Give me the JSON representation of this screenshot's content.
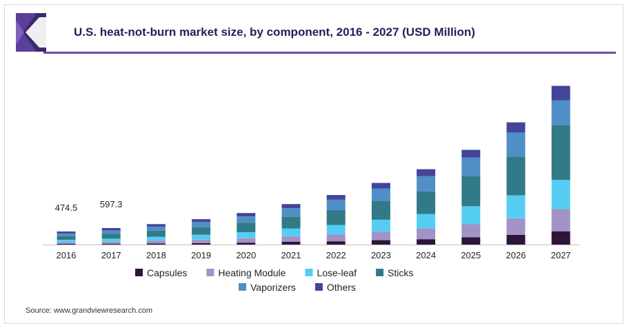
{
  "title": "U.S. heat-not-burn market size, by component, 2016 - 2027 (USD Million)",
  "source": "Source: www.grandviewresearch.com",
  "colors": {
    "Capsules": "#2e1538",
    "Heating Module": "#a193c6",
    "Lose-leaf": "#55cdf2",
    "Sticks": "#317a87",
    "Vaporizers": "#4f8fc6",
    "Others": "#45449a",
    "title": "#1f1f5a",
    "accent": "#6e4aa5"
  },
  "chart_data": {
    "type": "bar",
    "stacked": true,
    "categories": [
      "2016",
      "2017",
      "2018",
      "2019",
      "2020",
      "2021",
      "2022",
      "2023",
      "2024",
      "2025",
      "2026",
      "2027"
    ],
    "series": [
      {
        "name": "Capsules",
        "values": [
          25,
          31,
          40,
          55,
          70,
          100,
          120,
          160,
          195,
          265,
          350,
          480
        ]
      },
      {
        "name": "Heating Module",
        "values": [
          60,
          72,
          100,
          125,
          160,
          205,
          250,
          310,
          380,
          470,
          600,
          800
        ]
      },
      {
        "name": "Lose-leaf",
        "values": [
          90,
          110,
          140,
          175,
          220,
          280,
          340,
          430,
          530,
          650,
          830,
          1060
        ]
      },
      {
        "name": "Sticks",
        "values": [
          140,
          180,
          220,
          270,
          340,
          430,
          540,
          670,
          820,
          1080,
          1400,
          1980
        ]
      },
      {
        "name": "Vaporizers",
        "values": [
          90,
          120,
          150,
          190,
          230,
          300,
          370,
          460,
          550,
          680,
          880,
          900
        ]
      },
      {
        "name": "Others",
        "values": [
          69.5,
          84.3,
          90,
          105,
          120,
          150,
          170,
          200,
          250,
          280,
          360,
          520
        ]
      }
    ],
    "data_labels": [
      {
        "category": "2016",
        "text": "474.5"
      },
      {
        "category": "2017",
        "text": "597.3"
      }
    ],
    "ylim": [
      0,
      6800
    ],
    "legend": {
      "position": "bottom",
      "rows": [
        [
          "Capsules",
          "Heating Module",
          "Lose-leaf",
          "Sticks"
        ],
        [
          "Vaporizers",
          "Others"
        ]
      ]
    }
  }
}
